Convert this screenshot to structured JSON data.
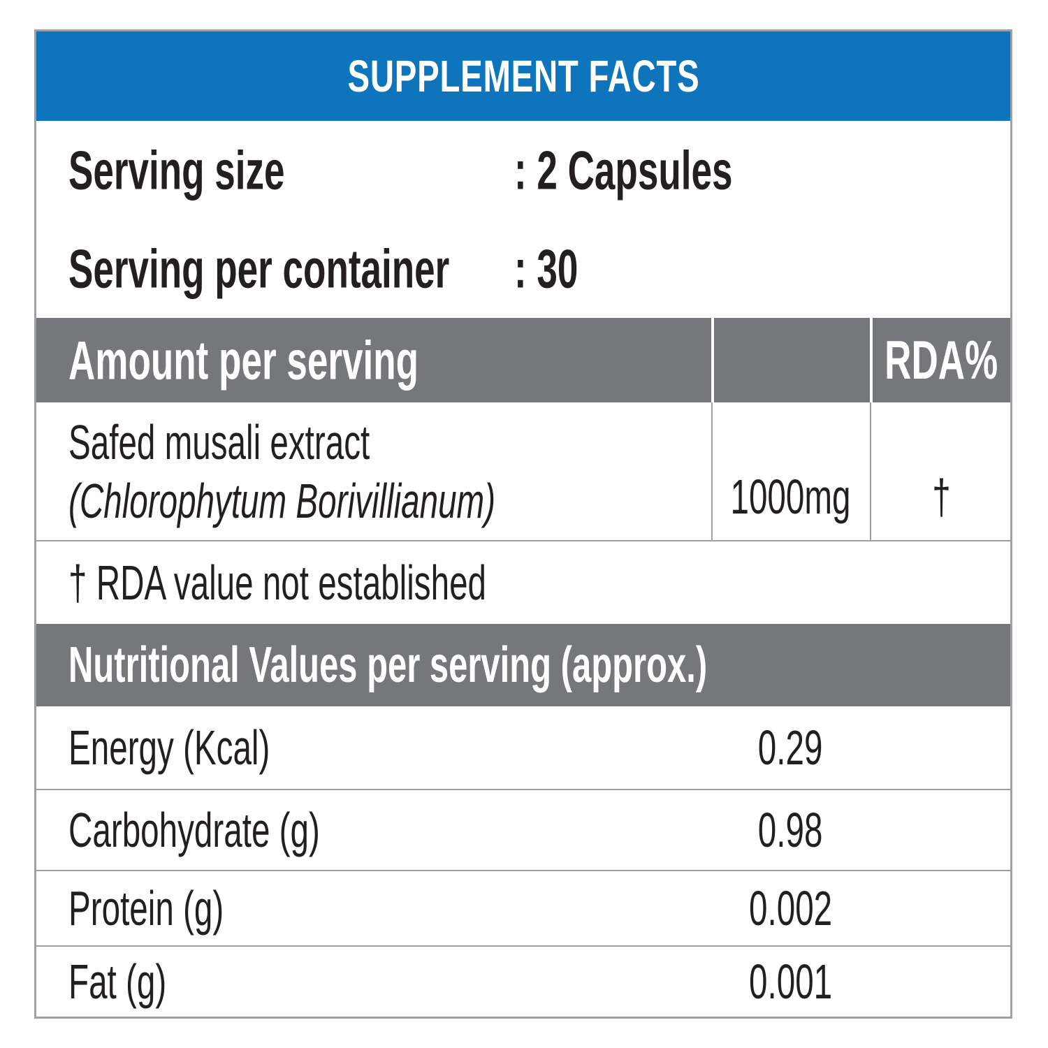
{
  "colors": {
    "header_blue": "#0E74BC",
    "bar_gray": "#76777B",
    "border_gray": "#9EA0A3",
    "text_black": "#231F20"
  },
  "title": "SUPPLEMENT FACTS",
  "serving": {
    "rows": [
      {
        "label": "Serving size",
        "value": ": 2 Capsules"
      },
      {
        "label": "Serving per container",
        "value": ": 30"
      }
    ]
  },
  "amount_header": {
    "label": "Amount per serving",
    "rda": "RDA%"
  },
  "ingredient": {
    "name": "Safed musali extract",
    "latin": "(Chlorophytum Borivillianum)",
    "amount": "1000mg",
    "rda": "†"
  },
  "note": "† RDA value not established",
  "nutrition": {
    "header": "Nutritional Values per serving (approx.)",
    "rows": [
      {
        "label": "Energy (Kcal)",
        "value": "0.29"
      },
      {
        "label": "Carbohydrate (g)",
        "value": "0.98"
      },
      {
        "label": "Protein (g)",
        "value": "0.002"
      },
      {
        "label": "Fat (g)",
        "value": "0.001"
      }
    ]
  }
}
